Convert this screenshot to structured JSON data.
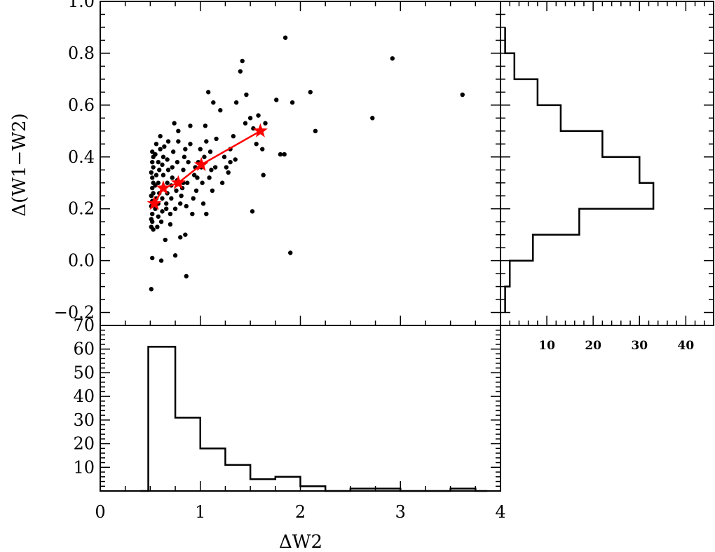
{
  "chart_data": [
    {
      "type": "scatter",
      "panel": "main",
      "xlabel": "",
      "ylabel": "Δ(W1−W2)",
      "xlim": [
        0,
        4
      ],
      "ylim": [
        -0.25,
        1.0
      ],
      "yticks": [
        "−0.2",
        "0.0",
        "0.2",
        "0.4",
        "0.6",
        "0.8",
        "1.0"
      ],
      "ytick_values": [
        -0.2,
        0.0,
        0.2,
        0.4,
        0.6,
        0.8,
        1.0
      ],
      "points": [
        [
          0.51,
          -0.11
        ],
        [
          0.52,
          0.01
        ],
        [
          0.51,
          0.13
        ],
        [
          0.52,
          0.15
        ],
        [
          0.53,
          0.12
        ],
        [
          0.51,
          0.16
        ],
        [
          0.52,
          0.18
        ],
        [
          0.51,
          0.21
        ],
        [
          0.52,
          0.23
        ],
        [
          0.51,
          0.25
        ],
        [
          0.53,
          0.26
        ],
        [
          0.52,
          0.28
        ],
        [
          0.53,
          0.3
        ],
        [
          0.52,
          0.32
        ],
        [
          0.51,
          0.34
        ],
        [
          0.53,
          0.36
        ],
        [
          0.52,
          0.38
        ],
        [
          0.53,
          0.4
        ],
        [
          0.52,
          0.42
        ],
        [
          0.55,
          0.2
        ],
        [
          0.56,
          0.24
        ],
        [
          0.55,
          0.29
        ],
        [
          0.56,
          0.33
        ],
        [
          0.55,
          0.41
        ],
        [
          0.56,
          0.45
        ],
        [
          0.57,
          0.13
        ],
        [
          0.58,
          0.17
        ],
        [
          0.58,
          0.22
        ],
        [
          0.59,
          0.26
        ],
        [
          0.58,
          0.3
        ],
        [
          0.59,
          0.35
        ],
        [
          0.58,
          0.38
        ],
        [
          0.6,
          0.43
        ],
        [
          0.6,
          0.48
        ],
        [
          0.61,
          0.0
        ],
        [
          0.61,
          0.15
        ],
        [
          0.62,
          0.19
        ],
        [
          0.62,
          0.24
        ],
        [
          0.63,
          0.28
        ],
        [
          0.63,
          0.33
        ],
        [
          0.62,
          0.37
        ],
        [
          0.63,
          0.4
        ],
        [
          0.64,
          0.44
        ],
        [
          0.65,
          0.08
        ],
        [
          0.66,
          0.2
        ],
        [
          0.66,
          0.22
        ],
        [
          0.67,
          0.26
        ],
        [
          0.67,
          0.3
        ],
        [
          0.68,
          0.35
        ],
        [
          0.67,
          0.39
        ],
        [
          0.68,
          0.46
        ],
        [
          0.7,
          0.14
        ],
        [
          0.7,
          0.18
        ],
        [
          0.71,
          0.24
        ],
        [
          0.71,
          0.29
        ],
        [
          0.72,
          0.32
        ],
        [
          0.72,
          0.36
        ],
        [
          0.73,
          0.42
        ],
        [
          0.74,
          0.53
        ],
        [
          0.75,
          0.02
        ],
        [
          0.75,
          0.2
        ],
        [
          0.76,
          0.27
        ],
        [
          0.77,
          0.31
        ],
        [
          0.77,
          0.38
        ],
        [
          0.78,
          0.46
        ],
        [
          0.78,
          0.5
        ],
        [
          0.8,
          0.09
        ],
        [
          0.8,
          0.22
        ],
        [
          0.81,
          0.25
        ],
        [
          0.82,
          0.28
        ],
        [
          0.83,
          0.3
        ],
        [
          0.83,
          0.35
        ],
        [
          0.84,
          0.4
        ],
        [
          0.85,
          0.43
        ],
        [
          0.85,
          0.1
        ],
        [
          0.86,
          -0.06
        ],
        [
          0.86,
          0.21
        ],
        [
          0.87,
          0.3
        ],
        [
          0.88,
          0.38
        ],
        [
          0.9,
          0.45
        ],
        [
          0.9,
          0.52
        ],
        [
          0.92,
          0.18
        ],
        [
          0.93,
          0.24
        ],
        [
          0.94,
          0.33
        ],
        [
          0.95,
          0.36
        ],
        [
          0.96,
          0.27
        ],
        [
          0.97,
          0.32
        ],
        [
          0.98,
          0.38
        ],
        [
          1.0,
          0.43
        ],
        [
          1.01,
          0.36
        ],
        [
          1.02,
          0.3
        ],
        [
          1.03,
          0.22
        ],
        [
          1.04,
          0.4
        ],
        [
          1.05,
          0.52
        ],
        [
          1.06,
          0.46
        ],
        [
          1.06,
          0.18
        ],
        [
          1.08,
          0.65
        ],
        [
          1.09,
          0.32
        ],
        [
          1.1,
          0.42
        ],
        [
          1.11,
          0.35
        ],
        [
          1.12,
          0.27
        ],
        [
          1.13,
          0.61
        ],
        [
          1.15,
          0.36
        ],
        [
          1.16,
          0.47
        ],
        [
          1.2,
          0.58
        ],
        [
          1.22,
          0.3
        ],
        [
          1.24,
          0.4
        ],
        [
          1.26,
          0.36
        ],
        [
          1.28,
          0.34
        ],
        [
          1.3,
          0.38
        ],
        [
          1.3,
          0.43
        ],
        [
          1.33,
          0.48
        ],
        [
          1.35,
          0.39
        ],
        [
          1.36,
          0.61
        ],
        [
          1.4,
          0.73
        ],
        [
          1.42,
          0.77
        ],
        [
          1.45,
          0.53
        ],
        [
          1.46,
          0.64
        ],
        [
          1.5,
          0.55
        ],
        [
          1.52,
          0.19
        ],
        [
          1.53,
          0.51
        ],
        [
          1.56,
          0.45
        ],
        [
          1.58,
          0.56
        ],
        [
          1.62,
          0.43
        ],
        [
          1.63,
          0.33
        ],
        [
          1.65,
          0.53
        ],
        [
          1.76,
          0.62
        ],
        [
          1.8,
          0.41
        ],
        [
          1.84,
          0.41
        ],
        [
          1.85,
          0.86
        ],
        [
          1.9,
          0.03
        ],
        [
          1.92,
          0.61
        ],
        [
          2.1,
          0.65
        ],
        [
          2.15,
          0.5
        ],
        [
          2.72,
          0.55
        ],
        [
          2.92,
          0.78
        ],
        [
          3.62,
          0.64
        ]
      ],
      "trend": {
        "color": "#ff0000",
        "points": [
          [
            0.54,
            0.22
          ],
          [
            0.63,
            0.28
          ],
          [
            0.78,
            0.3
          ],
          [
            1.01,
            0.37
          ],
          [
            1.6,
            0.5
          ]
        ]
      }
    },
    {
      "type": "bar",
      "panel": "bottom-histogram",
      "xlabel": "ΔW2",
      "ylabel": "",
      "xlim": [
        0,
        4
      ],
      "ylim": [
        0,
        70
      ],
      "xticks": [
        "0",
        "1",
        "2",
        "3",
        "4"
      ],
      "xtick_values": [
        0,
        1,
        2,
        3,
        4
      ],
      "yticks": [
        "10",
        "20",
        "30",
        "40",
        "50",
        "60",
        "70"
      ],
      "ytick_values": [
        10,
        20,
        30,
        40,
        50,
        60,
        70
      ],
      "bin_edges": [
        0.4,
        0.48,
        0.75,
        1.0,
        1.25,
        1.5,
        1.75,
        2.0,
        2.25,
        2.5,
        2.75,
        3.0,
        3.25,
        3.5,
        3.75,
        3.87
      ],
      "values": [
        0,
        61,
        31,
        18,
        11,
        5,
        6,
        2,
        0,
        1,
        1,
        0,
        0,
        1,
        0
      ]
    },
    {
      "type": "bar",
      "panel": "right-histogram",
      "orientation": "horizontal",
      "xlim": [
        0,
        46
      ],
      "xticks": [
        "10",
        "20",
        "30",
        "40"
      ],
      "xtick_values": [
        10,
        20,
        30,
        40
      ],
      "bin_edges": [
        -0.2,
        -0.1,
        0.0,
        0.1,
        0.2,
        0.3,
        0.4,
        0.5,
        0.6,
        0.7,
        0.8,
        0.9
      ],
      "values": [
        1,
        2,
        7,
        17,
        33,
        30,
        22,
        13,
        8,
        3,
        1
      ]
    }
  ]
}
